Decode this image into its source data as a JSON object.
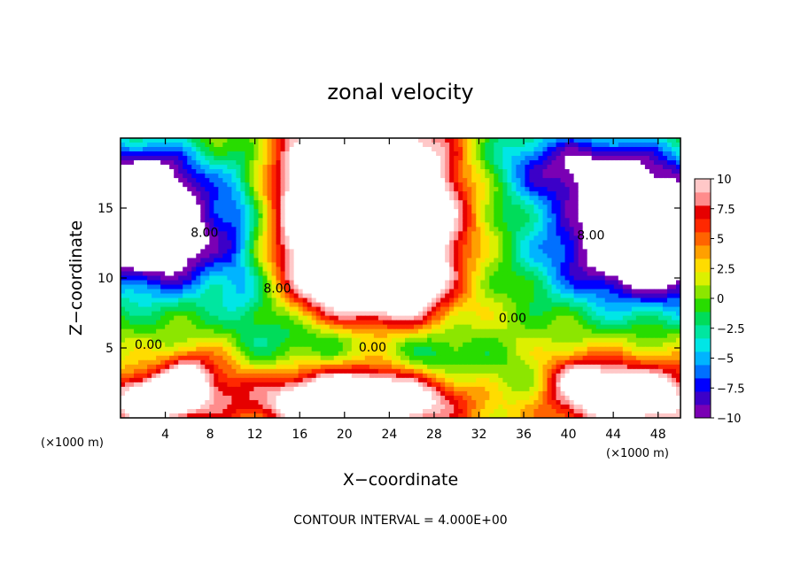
{
  "chart_data": {
    "type": "heatmap",
    "title": "zonal velocity",
    "xlabel": "X−coordinate",
    "ylabel": "Z−coordinate",
    "x_unit_left": "(×1000 m)",
    "x_unit_right": "(×1000 m)",
    "footer": "CONTOUR INTERVAL = 4.000E+00",
    "xlim": [
      0,
      50
    ],
    "ylim": [
      0,
      20
    ],
    "x_ticks": [
      4,
      8,
      12,
      16,
      20,
      24,
      28,
      32,
      36,
      40,
      44,
      48
    ],
    "y_ticks": [
      5,
      10,
      15
    ],
    "colorbar": {
      "range": [
        -10,
        10
      ],
      "ticks": [
        {
          "value": 10,
          "label": "10"
        },
        {
          "value": 7.5,
          "label": "7.5"
        },
        {
          "value": 5,
          "label": "5"
        },
        {
          "value": 2.5,
          "label": "2.5"
        },
        {
          "value": 0,
          "label": "0"
        },
        {
          "value": -2.5,
          "label": "−2.5"
        },
        {
          "value": -5,
          "label": "−5"
        },
        {
          "value": -7.5,
          "label": "−7.5"
        },
        {
          "value": -10,
          "label": "−10"
        }
      ],
      "colors": [
        "#7a00b4",
        "#3c00c8",
        "#0000ff",
        "#0070ff",
        "#00b4ff",
        "#00e6e6",
        "#00e6a0",
        "#00dc5a",
        "#28dc00",
        "#8ce600",
        "#dcf000",
        "#ffdc00",
        "#ffa000",
        "#ff6400",
        "#ff2800",
        "#e60000",
        "#ff8c8c",
        "#ffc8c8"
      ],
      "below_min_color": "#ffffff",
      "above_max_color": "#ffffff"
    },
    "contour_labels": [
      {
        "text": "0.00",
        "x": 2.5,
        "y": 5.2
      },
      {
        "text": "0.00",
        "x": 22.5,
        "y": 5.0
      },
      {
        "text": "0.00",
        "x": 35.0,
        "y": 7.1
      },
      {
        "text": "8.00",
        "x": 14.0,
        "y": 9.2
      },
      {
        "text": "8.00",
        "x": 7.5,
        "y": 13.2
      },
      {
        "text": "8.00",
        "x": 42.0,
        "y": 13.0
      }
    ],
    "features": [
      {
        "x": 22.0,
        "y": 14.5,
        "sx": 4.5,
        "sy": 5.0,
        "amp": 20
      },
      {
        "x": 20.0,
        "y": 10.5,
        "sx": 3.5,
        "sy": 2.2,
        "amp": 6
      },
      {
        "x": 26.0,
        "y": 10.0,
        "sx": 2.5,
        "sy": 2.5,
        "amp": 6
      },
      {
        "x": 3.0,
        "y": 13.0,
        "sx": 5.0,
        "sy": 3.0,
        "amp": -17
      },
      {
        "x": 2.0,
        "y": 17.5,
        "sx": 4.0,
        "sy": 2.0,
        "amp": -9
      },
      {
        "x": 47.5,
        "y": 12.0,
        "sx": 7.0,
        "sy": 3.0,
        "amp": -17
      },
      {
        "x": 45.0,
        "y": 17.5,
        "sx": 6.0,
        "sy": 2.0,
        "amp": -9
      },
      {
        "x": 38.0,
        "y": 18.5,
        "sx": 5.0,
        "sy": 2.0,
        "amp": -5
      },
      {
        "x": 16.0,
        "y": 16.0,
        "sx": 1.8,
        "sy": 4.0,
        "amp": 5
      },
      {
        "x": 28.0,
        "y": 16.0,
        "sx": 3.0,
        "sy": 4.0,
        "amp": 5
      },
      {
        "x": 10.5,
        "y": 14.0,
        "sx": 1.2,
        "sy": 5.0,
        "amp": -3
      },
      {
        "x": 18.0,
        "y": 5.5,
        "sx": 6.0,
        "sy": 1.5,
        "amp": -5
      },
      {
        "x": 28.0,
        "y": 4.5,
        "sx": 3.0,
        "sy": 1.5,
        "amp": -4
      },
      {
        "x": 21.0,
        "y": 1.2,
        "sx": 6.0,
        "sy": 1.5,
        "amp": 17
      },
      {
        "x": 3.0,
        "y": 1.3,
        "sx": 3.0,
        "sy": 1.3,
        "amp": 14
      },
      {
        "x": 6.0,
        "y": 3.0,
        "sx": 1.5,
        "sy": 1.3,
        "amp": 9
      },
      {
        "x": 45.5,
        "y": 1.5,
        "sx": 5.0,
        "sy": 1.8,
        "amp": 13
      },
      {
        "x": 40.5,
        "y": 3.0,
        "sx": 2.0,
        "sy": 1.2,
        "amp": 5
      },
      {
        "x": 36.0,
        "y": 2.5,
        "sx": 3.0,
        "sy": 1.5,
        "amp": -3
      },
      {
        "x": 9.5,
        "y": 3.0,
        "sx": 1.5,
        "sy": 2.5,
        "amp": 3
      },
      {
        "x": 12.0,
        "y": 8.5,
        "sx": 2.5,
        "sy": 1.5,
        "amp": -3
      }
    ]
  }
}
